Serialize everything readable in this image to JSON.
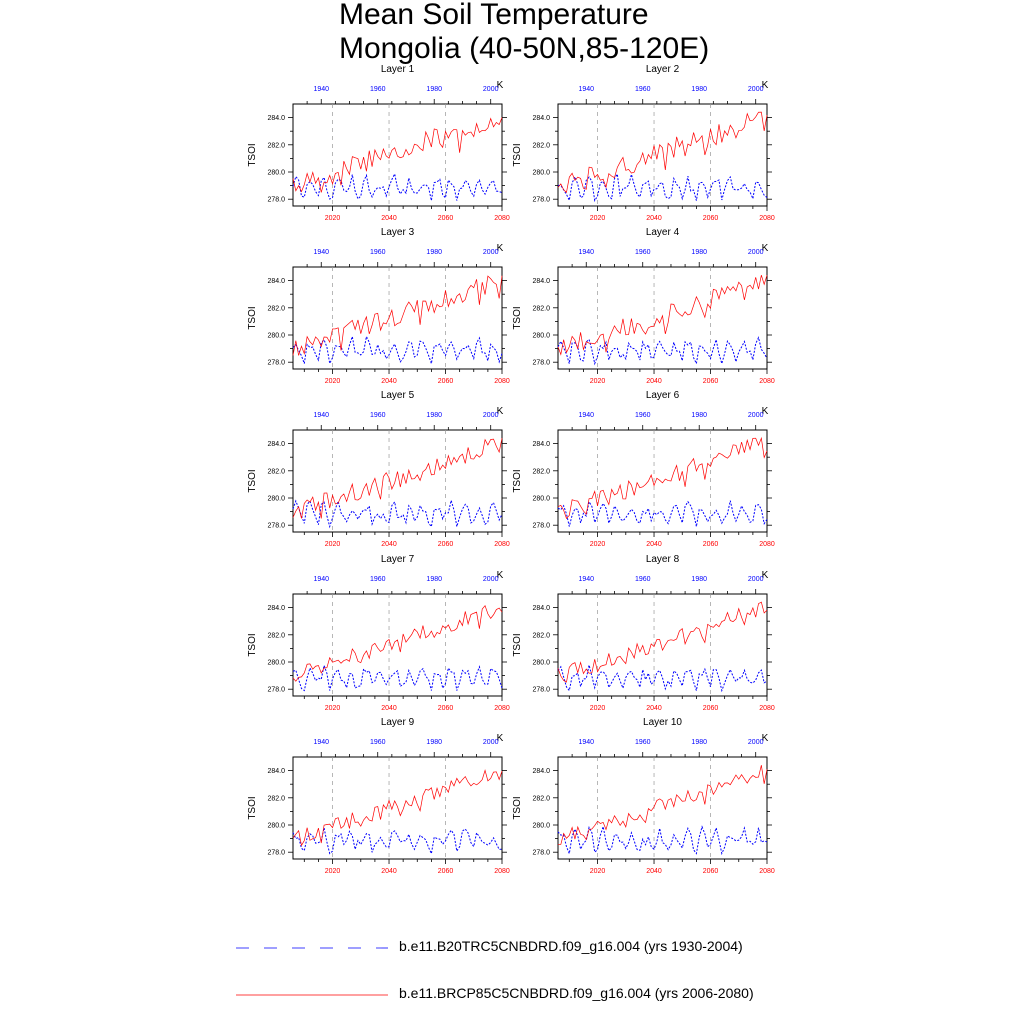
{
  "figure": {
    "title_line1": "Mean Soil Temperature",
    "title_line2": "Mongolia (40-50N,85-120E)"
  },
  "chart_data": {
    "type": "line",
    "panel_titles": [
      "Layer 1",
      "Layer 2",
      "Layer 3",
      "Layer 4",
      "Layer 5",
      "Layer 6",
      "Layer 7",
      "Layer 8",
      "Layer 9",
      "Layer 10"
    ],
    "ylabel": "TSOI",
    "units": "K",
    "ylim": [
      277.5,
      285.0
    ],
    "yticks": [
      "278.0",
      "280.0",
      "282.0",
      "284.0"
    ],
    "bottom_axis": {
      "range": [
        2006,
        2080
      ],
      "ticks": [
        "2020",
        "2040",
        "2060",
        "2080"
      ],
      "color": "#ff0000"
    },
    "top_axis": {
      "range": [
        1930,
        2004
      ],
      "ticks": [
        "1940",
        "1960",
        "1980",
        "2000"
      ],
      "color": "#0000ff"
    },
    "series": [
      {
        "name": "b.e11.B20TRC5CNBDRD.f09_g16.004 (yrs 1930-2004)",
        "years": [
          1930,
          2004
        ],
        "color": "#0000ff",
        "style": "dashed",
        "approx_mean": 278.9,
        "approx_range": [
          278.0,
          280.0
        ],
        "description": "no trend, interannual variability"
      },
      {
        "name": "b.e11.BRCP85C5CNBDRD.f09_g16.004 (yrs 2006-2080)",
        "years": [
          2006,
          2080
        ],
        "color": "#ff0000",
        "style": "solid",
        "approx_start": 279.0,
        "approx_end": 284.2,
        "description": "warming trend"
      }
    ]
  },
  "legend": {
    "items": [
      {
        "label": "b.e11.B20TRC5CNBDRD.f09_g16.004 (yrs 1930-2004)",
        "color": "#0000ff",
        "dash": true
      },
      {
        "label": "b.e11.BRCP85C5CNBDRD.f09_g16.004 (yrs 2006-2080)",
        "color": "#ff0000",
        "dash": false
      }
    ]
  }
}
